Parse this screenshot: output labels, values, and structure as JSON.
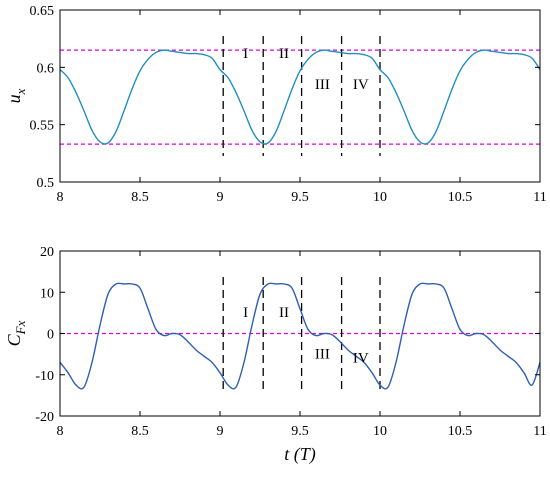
{
  "chart_data": [
    {
      "type": "line",
      "ylabel": "u",
      "ylabel_sub": "x",
      "xlabel": "",
      "xlim": [
        8,
        11
      ],
      "ylim": [
        0.5,
        0.65
      ],
      "xticks": [
        "8",
        "8.5",
        "9",
        "9.5",
        "10",
        "10.5",
        "11"
      ],
      "yticks": [
        "0.5",
        "0.55",
        "0.6",
        "0.65"
      ],
      "series": [
        {
          "color": "#1f8fc0",
          "x": [
            8.0,
            8.05,
            8.1,
            8.15,
            8.2,
            8.25,
            8.3,
            8.35,
            8.4,
            8.45,
            8.5,
            8.55,
            8.6,
            8.65,
            8.7,
            8.75,
            8.8,
            8.85,
            8.9,
            8.95,
            9.0,
            9.05,
            9.1,
            9.15,
            9.2,
            9.25,
            9.3,
            9.35,
            9.4,
            9.45,
            9.5,
            9.55,
            9.6,
            9.65,
            9.7,
            9.75,
            9.8,
            9.85,
            9.9,
            9.95,
            10.0,
            10.05,
            10.1,
            10.15,
            10.2,
            10.25,
            10.3,
            10.35,
            10.4,
            10.45,
            10.5,
            10.55,
            10.6,
            10.65,
            10.7,
            10.75,
            10.8,
            10.85,
            10.9,
            10.95,
            11.0
          ],
          "y": [
            0.598,
            0.591,
            0.578,
            0.562,
            0.545,
            0.535,
            0.534,
            0.544,
            0.562,
            0.581,
            0.597,
            0.607,
            0.613,
            0.615,
            0.614,
            0.613,
            0.612,
            0.612,
            0.611,
            0.608,
            0.598,
            0.591,
            0.578,
            0.562,
            0.545,
            0.535,
            0.534,
            0.544,
            0.562,
            0.581,
            0.597,
            0.607,
            0.613,
            0.615,
            0.614,
            0.613,
            0.612,
            0.612,
            0.611,
            0.608,
            0.598,
            0.591,
            0.578,
            0.562,
            0.545,
            0.535,
            0.534,
            0.544,
            0.562,
            0.581,
            0.597,
            0.607,
            0.613,
            0.615,
            0.614,
            0.613,
            0.612,
            0.612,
            0.611,
            0.608,
            0.598
          ]
        }
      ],
      "hlines": [
        0.615,
        0.533
      ],
      "vlines": [
        9.02,
        9.27,
        9.51,
        9.76,
        10.0
      ],
      "regions": [
        {
          "label": "I",
          "x": 9.16,
          "y": 0.608
        },
        {
          "label": "II",
          "x": 9.4,
          "y": 0.608
        },
        {
          "label": "III",
          "x": 9.64,
          "y": 0.581
        },
        {
          "label": "IV",
          "x": 9.88,
          "y": 0.581
        }
      ],
      "line_color": "#1f8fc0",
      "hline_color": "#e000e0"
    },
    {
      "type": "line",
      "ylabel": "C",
      "ylabel_sub": "Fx",
      "xlabel": "t (T)",
      "xlim": [
        8,
        11
      ],
      "ylim": [
        -20,
        20
      ],
      "xticks": [
        "8",
        "8.5",
        "9",
        "9.5",
        "10",
        "10.5",
        "11"
      ],
      "yticks": [
        "-20",
        "-10",
        "0",
        "10",
        "20"
      ],
      "series": [
        {
          "color": "#2e5fb3",
          "x": [
            8.0,
            8.05,
            8.1,
            8.15,
            8.2,
            8.25,
            8.3,
            8.35,
            8.4,
            8.45,
            8.5,
            8.55,
            8.6,
            8.65,
            8.7,
            8.75,
            8.8,
            8.85,
            8.9,
            8.95,
            9.0,
            9.05,
            9.1,
            9.15,
            9.2,
            9.25,
            9.3,
            9.35,
            9.4,
            9.45,
            9.5,
            9.55,
            9.6,
            9.65,
            9.7,
            9.75,
            9.8,
            9.85,
            9.9,
            9.95,
            10.0,
            10.05,
            10.1,
            10.15,
            10.2,
            10.25,
            10.3,
            10.35,
            10.4,
            10.45,
            10.5,
            10.55,
            10.6,
            10.65,
            10.7,
            10.75,
            10.8,
            10.85,
            10.9,
            10.95,
            11.0
          ],
          "y": [
            -7.0,
            -9.5,
            -12.5,
            -13.0,
            -7.0,
            2.0,
            9.5,
            12.0,
            12.0,
            12.0,
            11.0,
            6.0,
            1.0,
            -0.5,
            0.0,
            -0.3,
            -2.0,
            -4.0,
            -5.5,
            -7.0,
            -9.5,
            -12.5,
            -13.0,
            -7.0,
            2.0,
            9.5,
            12.0,
            12.0,
            12.0,
            11.0,
            6.0,
            1.0,
            -0.5,
            0.0,
            -0.3,
            -2.0,
            -4.0,
            -5.5,
            -7.0,
            -9.5,
            -12.5,
            -13.0,
            -7.0,
            2.0,
            9.5,
            12.0,
            12.0,
            12.0,
            11.0,
            6.0,
            1.0,
            -0.5,
            0.0,
            -0.3,
            -2.0,
            -4.0,
            -5.5,
            -7.0,
            -9.5,
            -12.5,
            -7.0
          ]
        }
      ],
      "hlines": [
        0
      ],
      "vlines": [
        9.02,
        9.27,
        9.51,
        9.76,
        10.0
      ],
      "regions": [
        {
          "label": "I",
          "x": 9.16,
          "y": 4.0
        },
        {
          "label": "II",
          "x": 9.4,
          "y": 4.0
        },
        {
          "label": "III",
          "x": 9.64,
          "y": -6.0
        },
        {
          "label": "IV",
          "x": 9.88,
          "y": -7.0
        }
      ],
      "line_color": "#2e5fb3",
      "hline_color": "#e000e0"
    }
  ]
}
